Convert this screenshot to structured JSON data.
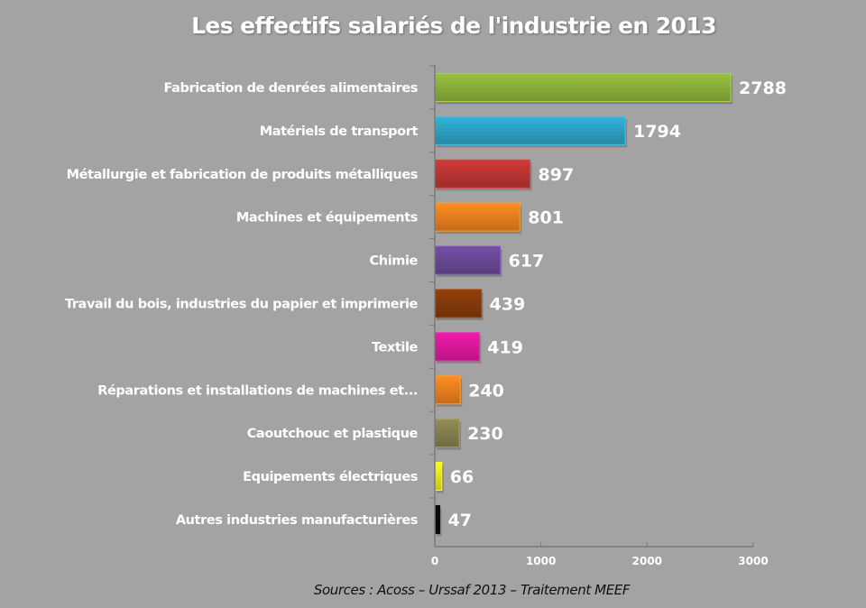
{
  "chart_data": {
    "type": "bar",
    "orientation": "horizontal",
    "title": "Les effectifs salariés de l'industrie en 2013",
    "xlabel": "",
    "ylabel": "",
    "xlim": [
      0,
      3000
    ],
    "x_ticks": [
      0,
      1000,
      2000,
      3000
    ],
    "grid": false,
    "legend": "none",
    "categories": [
      "Fabrication de denrées alimentaires",
      "Matériels de transport",
      "Métallurgie et fabrication de produits métalliques",
      "Machines et équipements",
      "Chimie",
      "Travail du bois, industries du papier et imprimerie",
      "Textile",
      "Réparations et installations de machines et...",
      "Caoutchouc et plastique",
      "Equipements électriques",
      "Autres industries manufacturières"
    ],
    "values": [
      2788,
      1794,
      897,
      801,
      617,
      439,
      419,
      240,
      230,
      66,
      47
    ],
    "colors": [
      "#8db43b",
      "#2ea6c9",
      "#c13634",
      "#f0831f",
      "#6b4a9a",
      "#8a3b0a",
      "#e0189d",
      "#f0831f",
      "#8a8350",
      "#f5ee10",
      "#0a0a0a"
    ],
    "data_labels": [
      "2788",
      "1794",
      "897",
      "801",
      "617",
      "439",
      "419",
      "240",
      "230",
      "66",
      "47"
    ],
    "source": "Sources : Acoss – Urssaf 2013 – Traitement MEEF"
  }
}
